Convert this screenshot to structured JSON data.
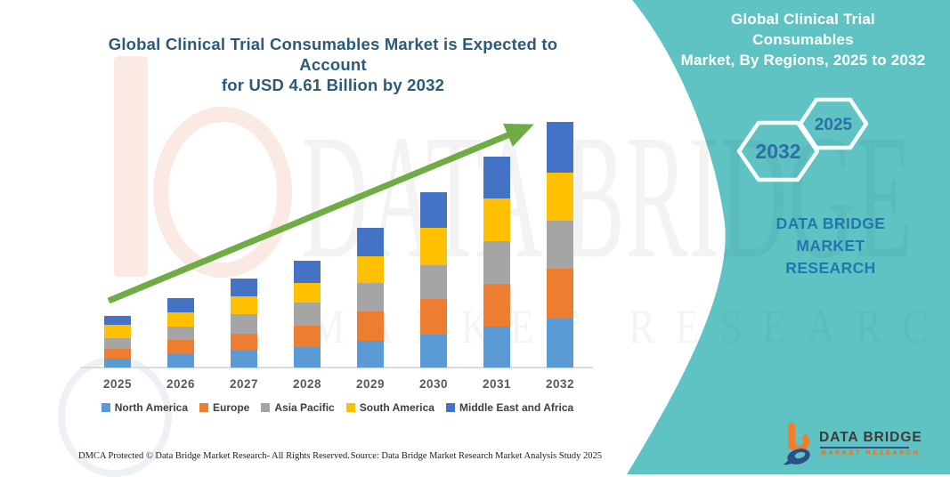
{
  "header": {
    "left_title_line1": "Global Clinical Trial Consumables Market is Expected to Account",
    "left_title_line2": "for USD 4.61 Billion by 2032"
  },
  "side_panel": {
    "accent_color": "#5FC3C4",
    "title_line1": "Global Clinical Trial Consumables",
    "title_line2": "Market, By Regions, 2025 to 2032",
    "hexagons": [
      {
        "label": "2032"
      },
      {
        "label": "2025"
      }
    ],
    "brand_line1": "DATA BRIDGE MARKET",
    "brand_line2": "RESEARCH",
    "logo": {
      "name": "DATA BRIDGE",
      "sub": "MARKET RESEARCH",
      "orange": "#F07F2D",
      "navy": "#2D4E86"
    }
  },
  "watermark": {
    "line1": "DATA BRIDGE",
    "line2": "MARKET RESEARCH"
  },
  "chart_data": {
    "type": "bar",
    "stacked": true,
    "title": "Global Clinical Trial Consumables Market is Expected to Account for USD 4.61 Billion by 2032",
    "unit": "USD Billion",
    "categories": [
      "2025",
      "2026",
      "2027",
      "2028",
      "2029",
      "2030",
      "2031",
      "2032"
    ],
    "series": [
      {
        "name": "North America",
        "color": "#5B9BD5",
        "values": [
          0.17,
          0.27,
          0.32,
          0.38,
          0.5,
          0.62,
          0.77,
          0.92
        ]
      },
      {
        "name": "Europe",
        "color": "#ED7D31",
        "values": [
          0.18,
          0.25,
          0.32,
          0.4,
          0.55,
          0.67,
          0.8,
          0.94
        ]
      },
      {
        "name": "Asia Pacific",
        "color": "#A5A5A5",
        "values": [
          0.2,
          0.25,
          0.36,
          0.43,
          0.53,
          0.63,
          0.8,
          0.9
        ]
      },
      {
        "name": "South America",
        "color": "#FFC000",
        "values": [
          0.25,
          0.27,
          0.33,
          0.37,
          0.5,
          0.7,
          0.8,
          0.9
        ]
      },
      {
        "name": "Middle East and Africa",
        "color": "#4472C4",
        "values": [
          0.17,
          0.26,
          0.34,
          0.42,
          0.54,
          0.67,
          0.79,
          0.95
        ]
      }
    ],
    "totals": [
      0.97,
      1.3,
      1.67,
      2.0,
      2.62,
      3.29,
      3.96,
      4.61
    ],
    "ylim": [
      0,
      5
    ],
    "gridlines": false,
    "legend_position": "bottom",
    "trend_arrow": true,
    "trend_color": "#6FAC46"
  },
  "footer": {
    "left": "DMCA Protected © Data Bridge Market Research-  All Rights Reserved.",
    "right": "Source: Data Bridge Market Research  Market Analysis Study 2025"
  }
}
